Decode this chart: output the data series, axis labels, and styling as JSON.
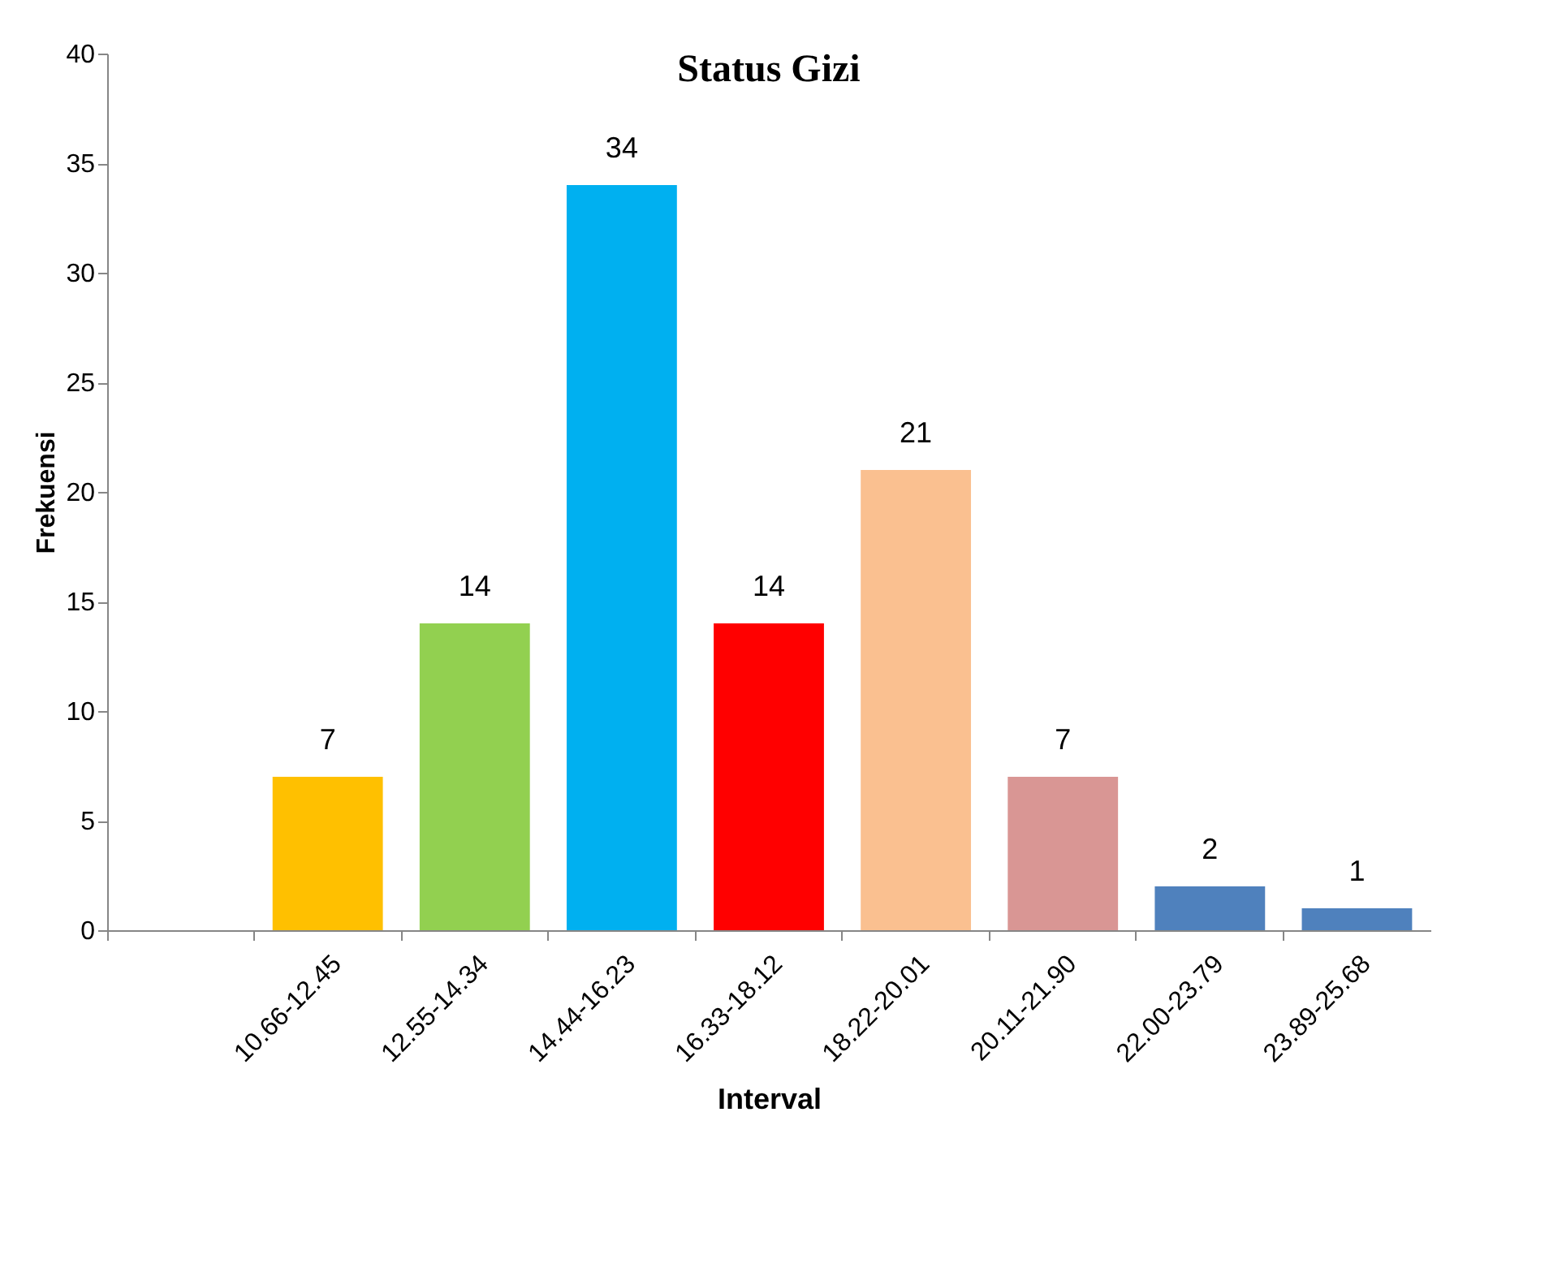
{
  "chart_data": {
    "type": "bar",
    "title": "Status Gizi",
    "xlabel": "Interval",
    "ylabel": "Frekuensi",
    "categories": [
      null,
      "10.66-12.45",
      "12.55-14.34",
      "14.44-16.23",
      "16.33-18.12",
      "18.22-20.01",
      "20.11-21.90",
      "22.00-23.79",
      "23.89-25.68"
    ],
    "values": [
      null,
      7,
      14,
      34,
      14,
      21,
      7,
      2,
      1
    ],
    "colors": [
      "#4f81bd",
      "#ffc000",
      "#92d050",
      "#00b0f0",
      "#ff0000",
      "#fac090",
      "#d99694",
      "#4f81bd",
      "#4f81bd"
    ],
    "ylim": [
      0,
      40
    ],
    "yticks": [
      0,
      5,
      10,
      15,
      20,
      25,
      30,
      35,
      40
    ],
    "data_labels": true,
    "grid": false
  }
}
